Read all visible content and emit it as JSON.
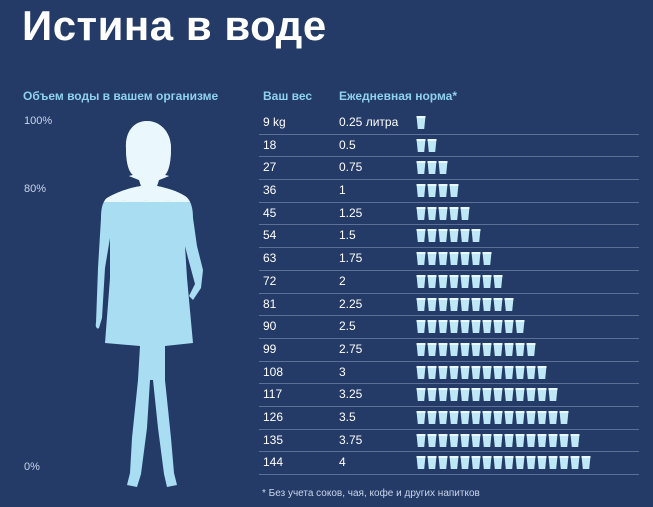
{
  "title": "Истина в воде",
  "left": {
    "header": "Объем воды в вашем организме",
    "scale": [
      "100%",
      "80%",
      "0%"
    ]
  },
  "table": {
    "col_weight": "Ваш вес",
    "col_norm": "Ежедневная норма*",
    "rows": [
      {
        "weight": "9 kg",
        "norm": "0.25 литра",
        "cups": 1
      },
      {
        "weight": "18",
        "norm": "0.5",
        "cups": 2
      },
      {
        "weight": "27",
        "norm": "0.75",
        "cups": 3
      },
      {
        "weight": "36",
        "norm": "1",
        "cups": 4
      },
      {
        "weight": "45",
        "norm": "1.25",
        "cups": 5
      },
      {
        "weight": "54",
        "norm": "1.5",
        "cups": 6
      },
      {
        "weight": "63",
        "norm": "1.75",
        "cups": 7
      },
      {
        "weight": "72",
        "norm": "2",
        "cups": 8
      },
      {
        "weight": "81",
        "norm": "2.25",
        "cups": 9
      },
      {
        "weight": "90",
        "norm": "2.5",
        "cups": 10
      },
      {
        "weight": "99",
        "norm": "2.75",
        "cups": 11
      },
      {
        "weight": "108",
        "norm": "3",
        "cups": 12
      },
      {
        "weight": "117",
        "norm": "3.25",
        "cups": 13
      },
      {
        "weight": "126",
        "norm": "3.5",
        "cups": 14
      },
      {
        "weight": "135",
        "norm": "3.75",
        "cups": 15
      },
      {
        "weight": "144",
        "norm": "4",
        "cups": 16
      }
    ]
  },
  "footnote": "* Без учета соков, чая, кофе и других напитков",
  "colors": {
    "background": "#243a67",
    "accent": "#8fd2ee",
    "cup": "#bfe8f7",
    "figure": "#a9ddf2",
    "figure_top": "#eaf7fc"
  },
  "icons": {
    "cup": "glass-icon",
    "figure": "woman-silhouette"
  }
}
